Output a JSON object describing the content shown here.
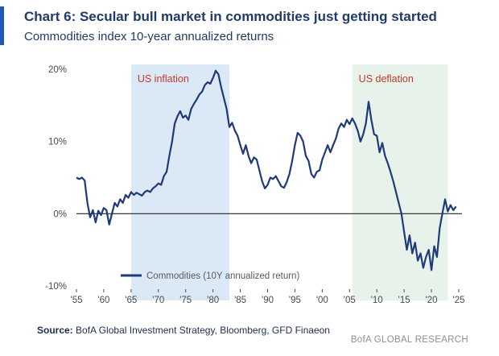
{
  "header": {
    "title": "Chart 6: Secular bull market in commodities just getting started",
    "subtitle": "Commodities index 10-year annualized returns"
  },
  "footer": {
    "source_label": "Source:",
    "source_text": "BofA Global Investment Strategy, Bloomberg, GFD Finaeon",
    "brand": "BofA GLOBAL RESEARCH"
  },
  "colors": {
    "title": "#203a69",
    "accent": "#1e57b7",
    "series": "#1e3a78",
    "inflation_shade": "#dbe9f6",
    "deflation_shade": "#e7f3ea",
    "annotation": "#c0392b",
    "axis": "#4a4a4a",
    "zero_line": "#222222"
  },
  "chart_data": {
    "type": "line",
    "title": "Chart 6: Secular bull market in commodities just getting started",
    "subtitle": "Commodities index 10-year annualized returns",
    "xlim": [
      1955,
      2025
    ],
    "ylim": [
      -10,
      20
    ],
    "x_ticks": [
      1955,
      1960,
      1965,
      1970,
      1975,
      1980,
      1985,
      1990,
      1995,
      2000,
      2005,
      2010,
      2015,
      2020,
      2025
    ],
    "x_tick_labels": [
      "'55",
      "'60",
      "'65",
      "'70",
      "'75",
      "'80",
      "'85",
      "'90",
      "'95",
      "'00",
      "'05",
      "'10",
      "'15",
      "'20",
      "'25"
    ],
    "y_ticks": [
      -10,
      0,
      10,
      20
    ],
    "y_tick_labels": [
      "-10%",
      "0%",
      "10%",
      "20%"
    ],
    "grid": false,
    "legend": {
      "position": "bottom-left",
      "entries": [
        "Commodities (10Y annualized return)"
      ]
    },
    "shaded_regions": [
      {
        "label": "US inflation",
        "x_start": 1965,
        "x_end": 1983
      },
      {
        "label": "US deflation",
        "x_start": 2005.5,
        "x_end": 2023
      }
    ],
    "series": [
      {
        "name": "Commodities (10Y annualized return)",
        "points": [
          [
            1955,
            5.0
          ],
          [
            1955.5,
            4.8
          ],
          [
            1956,
            5.0
          ],
          [
            1956.5,
            4.6
          ],
          [
            1957,
            1.5
          ],
          [
            1957.5,
            -0.5
          ],
          [
            1958,
            0.5
          ],
          [
            1958.5,
            -1.2
          ],
          [
            1959,
            0.4
          ],
          [
            1959.5,
            -0.2
          ],
          [
            1960,
            0.8
          ],
          [
            1960.5,
            0.5
          ],
          [
            1961,
            -1.5
          ],
          [
            1961.5,
            0.0
          ],
          [
            1962,
            1.5
          ],
          [
            1962.5,
            1.0
          ],
          [
            1963,
            2.0
          ],
          [
            1963.5,
            1.5
          ],
          [
            1964,
            2.6
          ],
          [
            1964.5,
            2.2
          ],
          [
            1965,
            3.0
          ],
          [
            1965.5,
            2.6
          ],
          [
            1966,
            2.9
          ],
          [
            1967,
            2.5
          ],
          [
            1967.5,
            3.0
          ],
          [
            1968,
            3.2
          ],
          [
            1968.5,
            3.0
          ],
          [
            1969,
            3.5
          ],
          [
            1969.5,
            3.8
          ],
          [
            1970,
            4.2
          ],
          [
            1970.5,
            4.0
          ],
          [
            1971,
            5.2
          ],
          [
            1971.5,
            5.8
          ],
          [
            1972,
            8.0
          ],
          [
            1972.5,
            10.0
          ],
          [
            1973,
            12.5
          ],
          [
            1973.5,
            13.5
          ],
          [
            1974,
            14.2
          ],
          [
            1974.5,
            13.3
          ],
          [
            1975,
            13.6
          ],
          [
            1975.5,
            13.0
          ],
          [
            1976,
            14.5
          ],
          [
            1976.5,
            15.2
          ],
          [
            1977,
            15.8
          ],
          [
            1977.5,
            16.5
          ],
          [
            1978,
            16.9
          ],
          [
            1978.5,
            17.8
          ],
          [
            1979,
            18.2
          ],
          [
            1979.5,
            18.0
          ],
          [
            1980,
            18.8
          ],
          [
            1980.5,
            19.8
          ],
          [
            1981,
            19.3
          ],
          [
            1981.5,
            17.5
          ],
          [
            1982,
            16.0
          ],
          [
            1982.5,
            14.5
          ],
          [
            1983,
            12.0
          ],
          [
            1983.5,
            12.6
          ],
          [
            1984,
            11.5
          ],
          [
            1984.5,
            10.8
          ],
          [
            1985,
            9.5
          ],
          [
            1985.5,
            8.3
          ],
          [
            1986,
            9.5
          ],
          [
            1986.5,
            8.0
          ],
          [
            1987,
            7.0
          ],
          [
            1987.5,
            7.8
          ],
          [
            1988,
            7.5
          ],
          [
            1988.5,
            6.0
          ],
          [
            1989,
            4.5
          ],
          [
            1989.5,
            3.5
          ],
          [
            1990,
            4.0
          ],
          [
            1990.5,
            5.0
          ],
          [
            1991,
            4.8
          ],
          [
            1991.5,
            5.2
          ],
          [
            1992,
            4.5
          ],
          [
            1992.5,
            3.8
          ],
          [
            1993,
            3.6
          ],
          [
            1993.5,
            4.4
          ],
          [
            1994,
            5.5
          ],
          [
            1994.5,
            7.3
          ],
          [
            1995,
            9.5
          ],
          [
            1995.5,
            11.2
          ],
          [
            1996,
            10.8
          ],
          [
            1996.5,
            10.0
          ],
          [
            1997,
            8.0
          ],
          [
            1997.5,
            7.3
          ],
          [
            1998,
            5.5
          ],
          [
            1998.5,
            5.0
          ],
          [
            1999,
            5.8
          ],
          [
            1999.5,
            6.0
          ],
          [
            2000,
            7.5
          ],
          [
            2000.5,
            8.5
          ],
          [
            2001,
            9.5
          ],
          [
            2001.5,
            8.5
          ],
          [
            2002,
            9.5
          ],
          [
            2002.5,
            10.4
          ],
          [
            2003,
            11.8
          ],
          [
            2003.5,
            12.5
          ],
          [
            2004,
            12.0
          ],
          [
            2004.5,
            13.0
          ],
          [
            2005,
            12.4
          ],
          [
            2005.5,
            13.2
          ],
          [
            2006,
            12.5
          ],
          [
            2006.5,
            11.5
          ],
          [
            2007,
            10.0
          ],
          [
            2007.5,
            11.0
          ],
          [
            2008,
            12.5
          ],
          [
            2008.5,
            15.5
          ],
          [
            2009,
            13.0
          ],
          [
            2009.5,
            11.0
          ],
          [
            2010,
            10.8
          ],
          [
            2010.5,
            8.5
          ],
          [
            2011,
            9.8
          ],
          [
            2011.5,
            8.0
          ],
          [
            2012,
            7.0
          ],
          [
            2012.5,
            5.8
          ],
          [
            2013,
            4.5
          ],
          [
            2013.5,
            3.0
          ],
          [
            2014,
            1.5
          ],
          [
            2014.5,
            0.0
          ],
          [
            2015,
            -2.5
          ],
          [
            2015.5,
            -5.0
          ],
          [
            2016,
            -3.0
          ],
          [
            2016.5,
            -5.5
          ],
          [
            2017,
            -4.0
          ],
          [
            2017.5,
            -6.5
          ],
          [
            2018,
            -5.5
          ],
          [
            2018.5,
            -7.5
          ],
          [
            2019,
            -6.0
          ],
          [
            2019.5,
            -5.0
          ],
          [
            2020,
            -7.8
          ],
          [
            2020.5,
            -4.5
          ],
          [
            2021,
            -6.0
          ],
          [
            2021.5,
            -2.0
          ],
          [
            2022,
            0.0
          ],
          [
            2022.5,
            2.0
          ],
          [
            2023,
            0.3
          ],
          [
            2023.5,
            1.2
          ],
          [
            2024,
            0.5
          ],
          [
            2024.5,
            1.0
          ]
        ]
      }
    ]
  }
}
